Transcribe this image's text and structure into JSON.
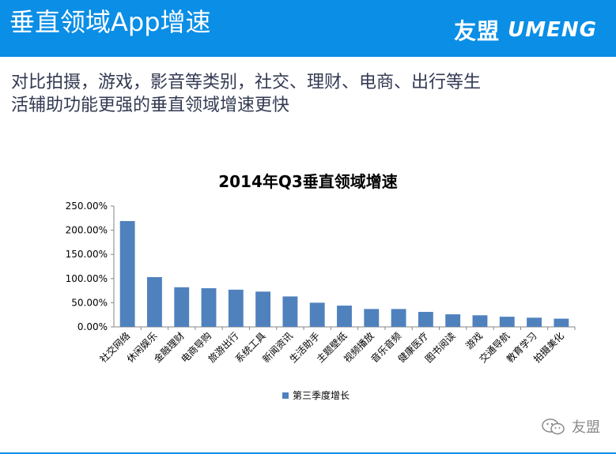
{
  "header": {
    "title": "垂直领域App增速",
    "logo_cn": "友盟",
    "logo_en": "UMENG"
  },
  "subtitle": {
    "line1": "对比拍摄，游戏，影音等类别，社交、理财、电商、出行等生",
    "line2": "活辅助功能更强的垂直领域增速更快"
  },
  "watermark": {
    "text": "友盟"
  },
  "colors": {
    "header": "#0a8ee6",
    "bar": "#4f81bd"
  },
  "chart_data": {
    "type": "bar",
    "title": "2014年Q3垂直领域增速",
    "xlabel": "",
    "ylabel": "",
    "ylim": [
      0,
      250
    ],
    "yticks": [
      "0.00%",
      "50.00%",
      "100.00%",
      "150.00%",
      "200.00%",
      "250.00%"
    ],
    "grid": false,
    "legend_position": "bottom",
    "categories": [
      "社交网络",
      "休闲娱乐",
      "金融理财",
      "电商导购",
      "旅游出行",
      "系统工具",
      "新闻资讯",
      "生活助手",
      "主题壁纸",
      "视频播放",
      "音乐音频",
      "健康医疗",
      "图书阅读",
      "游戏",
      "交通导航",
      "教育学习",
      "拍摄美化"
    ],
    "series": [
      {
        "name": "第三季度增长",
        "values": [
          219,
          103,
          82,
          80,
          77,
          73,
          63,
          50,
          44,
          37,
          37,
          31,
          26,
          24,
          21,
          19,
          17
        ]
      }
    ]
  }
}
